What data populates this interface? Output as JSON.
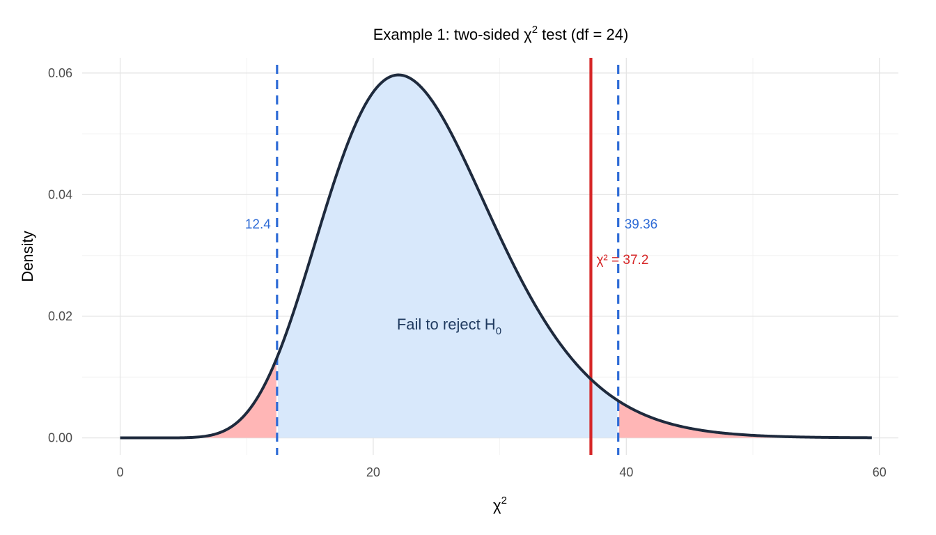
{
  "chart_data": {
    "type": "area",
    "title": {
      "prefix": "Example 1: two-sided ",
      "symbol": "χ",
      "sup": "2",
      "suffix": " test (df = 24)"
    },
    "xlabel": {
      "symbol": "χ",
      "sup": "2"
    },
    "ylabel": "Density",
    "df": 24,
    "xlim": [
      -3,
      61.5
    ],
    "ylim": [
      -0.0028,
      0.0625
    ],
    "x_ticks": [
      0,
      20,
      40,
      60
    ],
    "x_tick_labels": [
      "0",
      "20",
      "40",
      "60"
    ],
    "y_ticks": [
      0,
      0.02,
      0.04,
      0.06
    ],
    "y_tick_labels": [
      "0.00",
      "0.02",
      "0.04",
      "0.06"
    ],
    "grid": true,
    "curve_x_range": [
      0,
      59.4
    ],
    "critical_values": [
      {
        "value": 12.4,
        "label": "12.4"
      },
      {
        "value": 39.36,
        "label": "39.36"
      }
    ],
    "observed_statistic": {
      "value": 37.2,
      "label": "χ² = 37.2"
    },
    "annotation": {
      "text": "Fail to reject H",
      "sub": "0",
      "x": 26,
      "y": 0.0178
    },
    "colors": {
      "curve": "#1e2a3d",
      "accept_fill": "#d8e8fb",
      "reject_fill": "#ffb6b6",
      "critical_line": "#2e6bd6",
      "observed_line": "#d62728",
      "grid_major": "#e5e5e5",
      "grid_minor": "#f2f2f2",
      "annotation": "#1f3a5f",
      "critical_label": "#2e6bd6",
      "observed_label": "#d62728"
    }
  }
}
